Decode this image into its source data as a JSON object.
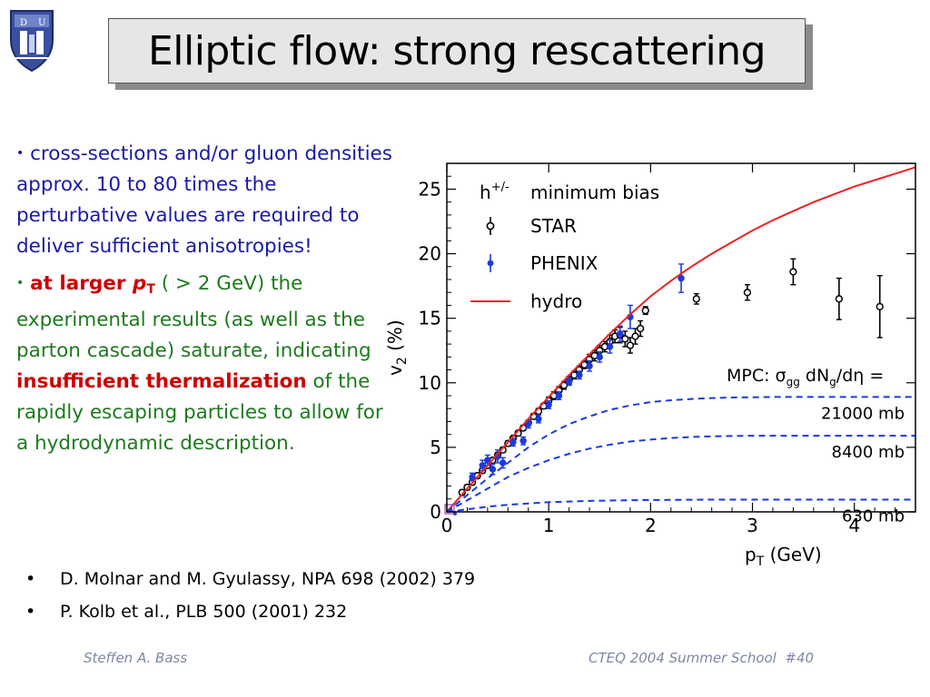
{
  "slide": {
    "title": "Elliptic flow: strong rescattering",
    "footer_left": "Steffen A. Bass",
    "footer_right": "CTEQ 2004 Summer School  #40"
  },
  "bullets": {
    "b1": "cross-sections and/or gluon densities approx. 10 to 80 times the perturbative values are required to deliver sufficient anisotropies!",
    "b2_strong": "at larger ",
    "b2_p": "p",
    "b2_sub": "T",
    "b2_rest1": " ( > 2 GeV) the experimental results (as well as the parton cascade) saturate, indicating ",
    "b2_strong2": "insufficient thermalization",
    "b2_rest2": " of the rapidly escaping particles to allow for a hydrodynamic description."
  },
  "references": [
    "D. Molnar and M. Gyulassy, NPA 698 (2002) 379",
    "P. Kolb et al., PLB 500 (2001) 232"
  ],
  "chart_data": {
    "type": "scatter",
    "title": "minimum bias",
    "particle_label": "h",
    "particle_sup": "+/-",
    "xlabel": "p",
    "xlabel_sub": "T",
    "xlabel_unit": " (GeV)",
    "ylabel": "v",
    "ylabel_sub": "2",
    "ylabel_unit": " (%)",
    "xlim": [
      0,
      4.6
    ],
    "ylim": [
      0,
      27
    ],
    "xticks": [
      0,
      1,
      2,
      3,
      4
    ],
    "yticks": [
      0,
      5,
      10,
      15,
      20,
      25
    ],
    "mpc_label": "MPC: σ",
    "mpc_sub1": "gg",
    "mpc_mid": " dN",
    "mpc_sub2": "g",
    "mpc_end": "/dη =",
    "series": [
      {
        "name": "STAR",
        "kind": "points",
        "color": "#000000",
        "points": [
          [
            0.15,
            1.5,
            0.2
          ],
          [
            0.2,
            1.9,
            0.2
          ],
          [
            0.25,
            2.3,
            0.2
          ],
          [
            0.3,
            2.8,
            0.2
          ],
          [
            0.35,
            3.2,
            0.2
          ],
          [
            0.4,
            3.6,
            0.2
          ],
          [
            0.45,
            4.0,
            0.2
          ],
          [
            0.5,
            4.4,
            0.2
          ],
          [
            0.55,
            4.8,
            0.2
          ],
          [
            0.6,
            5.3,
            0.2
          ],
          [
            0.65,
            5.7,
            0.2
          ],
          [
            0.7,
            6.1,
            0.2
          ],
          [
            0.75,
            6.5,
            0.2
          ],
          [
            0.8,
            6.9,
            0.2
          ],
          [
            0.85,
            7.4,
            0.2
          ],
          [
            0.9,
            7.8,
            0.2
          ],
          [
            0.95,
            8.2,
            0.2
          ],
          [
            1.0,
            8.6,
            0.3
          ],
          [
            1.05,
            9.0,
            0.3
          ],
          [
            1.1,
            9.4,
            0.3
          ],
          [
            1.15,
            9.8,
            0.3
          ],
          [
            1.2,
            10.2,
            0.3
          ],
          [
            1.25,
            10.6,
            0.3
          ],
          [
            1.3,
            11.0,
            0.3
          ],
          [
            1.35,
            11.4,
            0.3
          ],
          [
            1.4,
            11.8,
            0.4
          ],
          [
            1.45,
            12.1,
            0.4
          ],
          [
            1.5,
            12.5,
            0.4
          ],
          [
            1.55,
            12.8,
            0.4
          ],
          [
            1.6,
            13.2,
            0.5
          ],
          [
            1.65,
            13.6,
            0.5
          ],
          [
            1.7,
            13.7,
            0.6
          ],
          [
            1.75,
            13.4,
            0.6
          ],
          [
            1.8,
            12.9,
            0.6
          ],
          [
            1.85,
            13.6,
            0.6
          ],
          [
            1.9,
            14.2,
            0.6
          ],
          [
            1.95,
            15.6,
            0.3
          ],
          [
            2.45,
            16.5,
            0.4
          ],
          [
            2.95,
            17.0,
            0.6
          ],
          [
            3.4,
            18.6,
            1.0
          ],
          [
            3.85,
            16.5,
            1.6
          ],
          [
            4.25,
            15.9,
            2.4
          ]
        ]
      },
      {
        "name": "PHENIX",
        "kind": "points",
        "color": "#1a3adf",
        "points": [
          [
            0.25,
            2.7,
            0.3
          ],
          [
            0.35,
            3.6,
            0.4
          ],
          [
            0.4,
            4.0,
            0.4
          ],
          [
            0.45,
            3.3,
            0.4
          ],
          [
            0.5,
            4.3,
            0.5
          ],
          [
            0.55,
            3.8,
            0.4
          ],
          [
            0.65,
            5.4,
            0.3
          ],
          [
            0.75,
            5.5,
            0.3
          ],
          [
            0.8,
            6.8,
            0.3
          ],
          [
            0.9,
            7.2,
            0.3
          ],
          [
            1.0,
            8.3,
            0.3
          ],
          [
            1.1,
            9.0,
            0.3
          ],
          [
            1.2,
            10.1,
            0.3
          ],
          [
            1.3,
            10.6,
            0.3
          ],
          [
            1.4,
            11.3,
            0.4
          ],
          [
            1.5,
            12.0,
            0.4
          ],
          [
            1.6,
            12.8,
            0.5
          ],
          [
            1.7,
            13.8,
            0.6
          ],
          [
            1.8,
            15.1,
            0.9
          ],
          [
            2.3,
            18.1,
            1.1
          ]
        ]
      },
      {
        "name": "hydro",
        "kind": "line",
        "color": "#ee2222",
        "x": [
          0,
          0.2,
          0.4,
          0.6,
          0.8,
          1.0,
          1.2,
          1.4,
          1.6,
          1.8,
          2.0,
          2.2,
          2.4,
          2.6,
          2.8,
          3.0,
          3.2,
          3.4,
          3.6,
          3.8,
          4.0,
          4.2,
          4.4,
          4.6
        ],
        "y": [
          0,
          1.8,
          3.6,
          5.4,
          7.2,
          8.9,
          10.6,
          12.2,
          13.8,
          15.3,
          16.7,
          17.9,
          19.0,
          20.0,
          20.9,
          21.8,
          22.6,
          23.3,
          24.0,
          24.6,
          25.2,
          25.7,
          26.2,
          26.7
        ]
      },
      {
        "name": "21000 mb",
        "kind": "dashed",
        "color": "#1a3adf",
        "x": [
          0,
          0.2,
          0.4,
          0.6,
          0.8,
          1.0,
          1.2,
          1.4,
          1.6,
          1.8,
          2.0,
          2.2,
          2.4,
          2.6,
          2.8,
          3.0,
          3.2,
          3.4,
          3.6,
          3.8,
          4.0,
          4.2,
          4.4,
          4.6
        ],
        "y": [
          0,
          1.3,
          2.6,
          3.8,
          5.0,
          6.0,
          6.8,
          7.4,
          7.9,
          8.25,
          8.5,
          8.65,
          8.75,
          8.82,
          8.86,
          8.88,
          8.9,
          8.9,
          8.9,
          8.9,
          8.9,
          8.9,
          8.9,
          8.9
        ]
      },
      {
        "name": "8400 mb",
        "kind": "dashed",
        "color": "#1a3adf",
        "x": [
          0,
          0.2,
          0.4,
          0.6,
          0.8,
          1.0,
          1.2,
          1.4,
          1.6,
          1.8,
          2.0,
          2.2,
          2.4,
          2.6,
          2.8,
          3.0,
          3.2,
          3.4,
          3.6,
          3.8,
          4.0,
          4.2,
          4.4,
          4.6
        ],
        "y": [
          0,
          0.9,
          1.8,
          2.7,
          3.4,
          4.0,
          4.5,
          4.9,
          5.2,
          5.45,
          5.6,
          5.72,
          5.8,
          5.85,
          5.88,
          5.9,
          5.9,
          5.9,
          5.9,
          5.9,
          5.9,
          5.9,
          5.9,
          5.9
        ]
      },
      {
        "name": "630 mb",
        "kind": "dashed",
        "color": "#1a3adf",
        "x": [
          0,
          0.2,
          0.4,
          0.6,
          0.8,
          1.0,
          1.2,
          1.4,
          1.6,
          1.8,
          2.0,
          2.2,
          2.4,
          2.6,
          2.8,
          3.0,
          3.2,
          3.4,
          3.6,
          3.8,
          4.0,
          4.2,
          4.4,
          4.6
        ],
        "y": [
          0,
          0.2,
          0.4,
          0.55,
          0.65,
          0.75,
          0.8,
          0.85,
          0.88,
          0.9,
          0.92,
          0.93,
          0.94,
          0.95,
          0.95,
          0.95,
          0.95,
          0.95,
          0.95,
          0.95,
          0.95,
          0.95,
          0.95,
          0.95
        ]
      }
    ],
    "legend": [
      "STAR",
      "PHENIX",
      "hydro"
    ],
    "legend_placement": "top-left"
  },
  "colors": {
    "bullet1": "#1a1aa8",
    "bullet2": "#1e7a1e",
    "emphasis": "#cc0000",
    "footer": "#7b88a6",
    "title_bg": "#e6e6e6"
  }
}
